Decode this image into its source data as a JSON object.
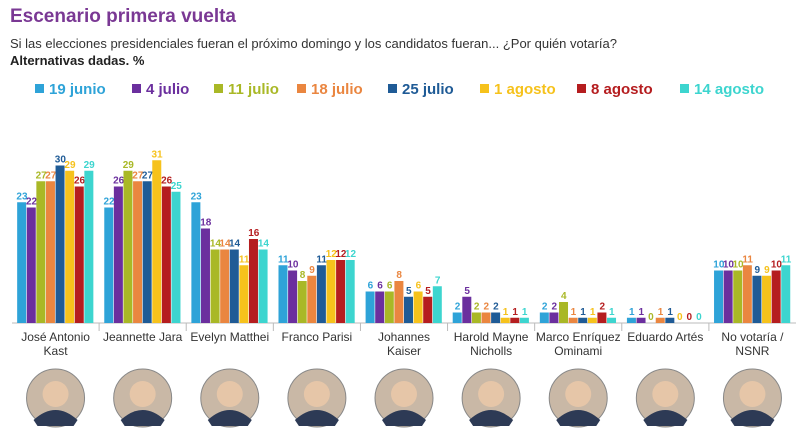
{
  "chart_data": {
    "type": "bar",
    "title": "Escenario primera vuelta",
    "subtitle": "Si las elecciones presidenciales fueran el próximo domingo y los candidatos fueran... ¿Por quién votaría?",
    "note": "Alternativas dadas. %",
    "categories": [
      "José Antonio Kast",
      "Jeannette Jara",
      "Evelyn Matthei",
      "Franco Parisi",
      "Johannes Kaiser",
      "Harold Mayne Nicholls",
      "Marco Enríquez Ominami",
      "Eduardo Artés",
      "No votaría / NSNR"
    ],
    "series": [
      {
        "name": "19 junio",
        "color": "#2ea3d8",
        "values": [
          23,
          22,
          23,
          11,
          6,
          2,
          2,
          1,
          10
        ]
      },
      {
        "name": "4 julio",
        "color": "#6b2f9e",
        "values": [
          22,
          26,
          18,
          10,
          6,
          5,
          2,
          1,
          10
        ]
      },
      {
        "name": "11 julio",
        "color": "#a9b826",
        "values": [
          27,
          29,
          14,
          8,
          6,
          2,
          4,
          0,
          10
        ]
      },
      {
        "name": "18 julio",
        "color": "#ea8640",
        "values": [
          27,
          27,
          14,
          9,
          8,
          2,
          1,
          1,
          11
        ]
      },
      {
        "name": "25 julio",
        "color": "#1f5b96",
        "values": [
          30,
          27,
          14,
          11,
          5,
          2,
          1,
          1,
          9
        ]
      },
      {
        "name": "1 agosto",
        "color": "#f6c21c",
        "values": [
          29,
          31,
          11,
          12,
          6,
          1,
          1,
          0,
          9
        ]
      },
      {
        "name": "8 agosto",
        "color": "#b51d1f",
        "values": [
          26,
          26,
          16,
          12,
          5,
          1,
          2,
          0,
          10
        ]
      },
      {
        "name": "14 agosto",
        "color": "#3dd5cf",
        "values": [
          29,
          25,
          14,
          12,
          7,
          1,
          1,
          0,
          11
        ]
      }
    ]
  }
}
